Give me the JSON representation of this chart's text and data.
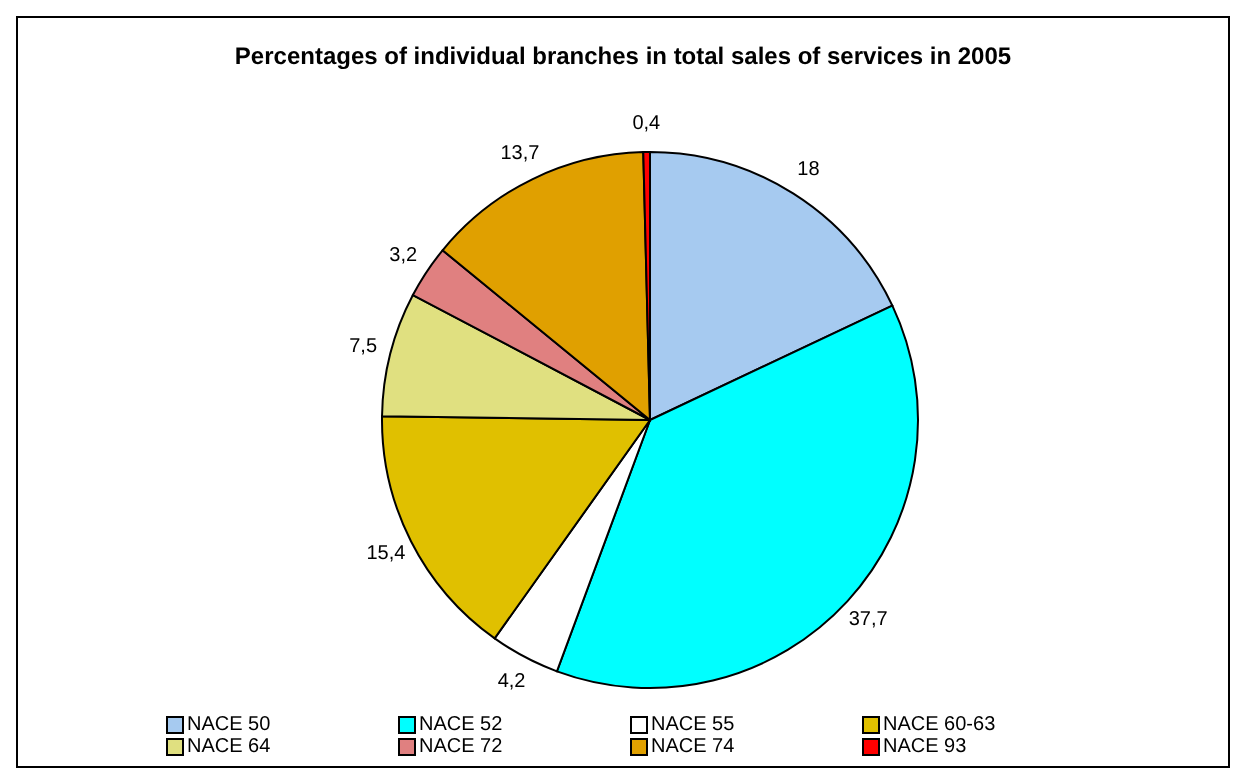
{
  "chart_data": {
    "type": "pie",
    "title": "Percentages of individual branches in total sales of services in 2005",
    "categories": [
      "NACE 50",
      "NACE 52",
      "NACE 55",
      "NACE 60-63",
      "NACE 64",
      "NACE 72",
      "NACE 74",
      "NACE 93"
    ],
    "values": [
      18,
      37.7,
      4.2,
      15.4,
      7.5,
      3.2,
      13.7,
      0.4
    ],
    "value_labels": [
      "18",
      "37,7",
      "4,2",
      "15,4",
      "7,5",
      "3,2",
      "13,7",
      "0,4"
    ],
    "colors": [
      "#a6caf0",
      "#00ffff",
      "#ffffff",
      "#e0c000",
      "#e0e080",
      "#e08080",
      "#e0a000",
      "#ff0000"
    ],
    "legend": "bottom"
  }
}
